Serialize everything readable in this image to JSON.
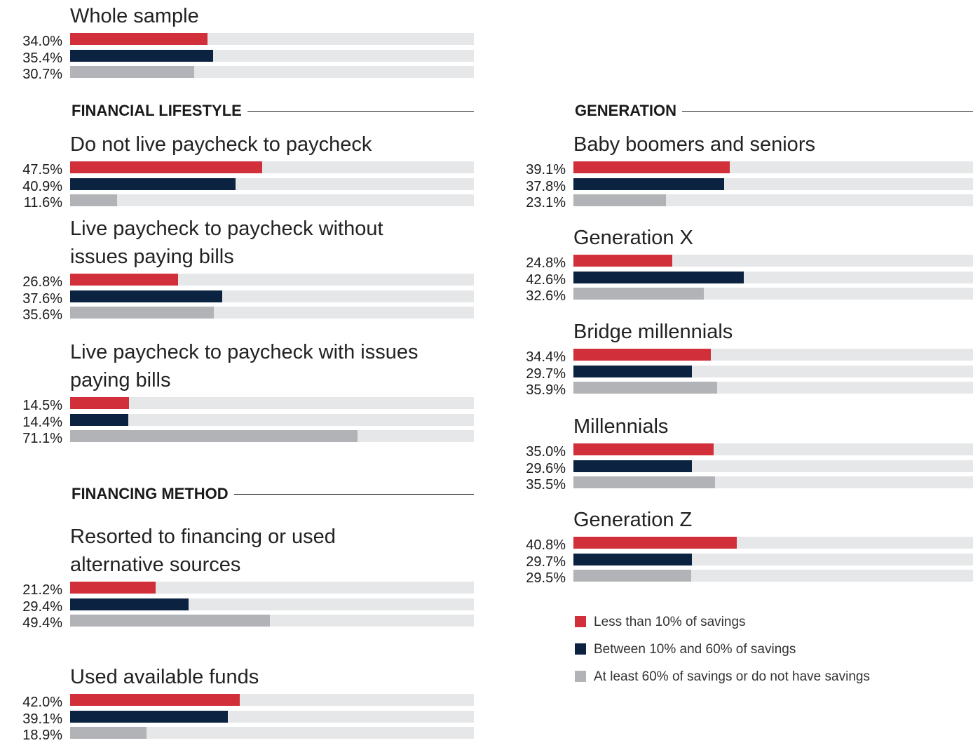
{
  "legend": {
    "entries": [
      {
        "name": "Less than 10% of savings",
        "color": "#d12f3a"
      },
      {
        "name": "Between 10% and 60% of savings",
        "color": "#0b2340"
      },
      {
        "name": "At least 60% of savings or do not have savings",
        "color": "#b1b3b6"
      }
    ]
  },
  "chart_data": [
    {
      "type": "bar",
      "orientation": "horizontal",
      "xlim": [
        0,
        100
      ],
      "track_color": "#e6e7e9",
      "categories": [
        "Whole sample"
      ],
      "series": [
        {
          "values": [
            34.0
          ],
          "value_labels": [
            "34.0%"
          ]
        },
        {
          "values": [
            35.4
          ],
          "value_labels": [
            "35.4%"
          ]
        },
        {
          "values": [
            30.7
          ],
          "value_labels": [
            "30.7%"
          ]
        }
      ]
    },
    {
      "type": "bar",
      "orientation": "horizontal",
      "xlim": [
        0,
        100
      ],
      "track_color": "#e6e7e9",
      "title": "FINANCIAL LIFESTYLE",
      "categories": [
        "Do not live paycheck to paycheck",
        "Live paycheck to paycheck without issues paying bills",
        "Live paycheck to paycheck with issues paying bills"
      ],
      "series": [
        {
          "values": [
            47.5,
            26.8,
            14.5
          ],
          "value_labels": [
            "47.5%",
            "26.8%",
            "14.5%"
          ]
        },
        {
          "values": [
            40.9,
            37.6,
            14.4
          ],
          "value_labels": [
            "40.9%",
            "37.6%",
            "14.4%"
          ]
        },
        {
          "values": [
            11.6,
            35.6,
            71.1
          ],
          "value_labels": [
            "11.6%",
            "35.6%",
            "71.1%"
          ]
        }
      ]
    },
    {
      "type": "bar",
      "orientation": "horizontal",
      "xlim": [
        0,
        100
      ],
      "track_color": "#e6e7e9",
      "title": "FINANCING METHOD",
      "categories": [
        "Resorted to financing or used alternative sources",
        "Used available funds"
      ],
      "series": [
        {
          "values": [
            21.2,
            42.0
          ],
          "value_labels": [
            "21.2%",
            "42.0%"
          ]
        },
        {
          "values": [
            29.4,
            39.1
          ],
          "value_labels": [
            "29.4%",
            "39.1%"
          ]
        },
        {
          "values": [
            49.4,
            18.9
          ],
          "value_labels": [
            "49.4%",
            "18.9%"
          ]
        }
      ]
    },
    {
      "type": "bar",
      "orientation": "horizontal",
      "xlim": [
        0,
        100
      ],
      "track_color": "#e6e7e9",
      "title": "GENERATION",
      "categories": [
        "Baby boomers and seniors",
        "Generation X",
        "Bridge millennials",
        "Millennials",
        "Generation Z"
      ],
      "series": [
        {
          "values": [
            39.1,
            24.8,
            34.4,
            35.0,
            40.8
          ],
          "value_labels": [
            "39.1%",
            "24.8%",
            "34.4%",
            "35.0%",
            "40.8%"
          ]
        },
        {
          "values": [
            37.8,
            42.6,
            29.7,
            29.6,
            29.7
          ],
          "value_labels": [
            "37.8%",
            "42.6%",
            "29.7%",
            "29.6%",
            "29.7%"
          ]
        },
        {
          "values": [
            23.1,
            32.6,
            35.9,
            35.5,
            29.5
          ],
          "value_labels": [
            "23.1%",
            "32.6%",
            "35.9%",
            "35.5%",
            "29.5%"
          ]
        }
      ]
    }
  ]
}
